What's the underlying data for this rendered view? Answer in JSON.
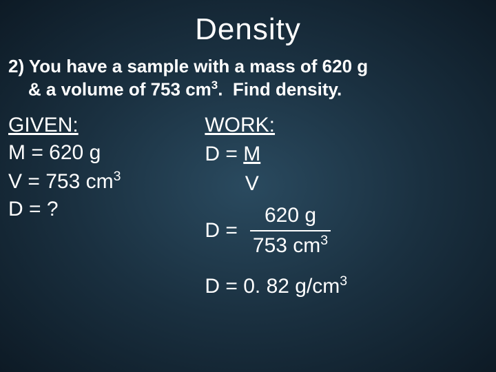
{
  "background": {
    "gradient_center": "#2a4a5f",
    "gradient_mid": "#1a3040",
    "gradient_edge": "#0d1a25"
  },
  "text_color": "#ffffff",
  "title": "Density",
  "title_fontsize": 44,
  "problem_fontsize": 26,
  "body_fontsize": 30,
  "problem_line1": "2) You have a sample with a mass of 620 g",
  "problem_line2_indent": "    & a volume of 753 cm",
  "problem_line2_sup": "3",
  "problem_line2_end": ".  Find density.",
  "given": {
    "heading": "GIVEN:",
    "m": "M = 620 g",
    "v_pre": "V = 753 cm",
    "v_sup": "3",
    "d": "D = ?"
  },
  "work": {
    "heading": "WORK:",
    "formula_lhs": "D = ",
    "formula_m": "M",
    "formula_v": "       V",
    "sub_lhs": "D =",
    "sub_top": "620 g",
    "sub_bot_pre": "753 cm",
    "sub_bot_sup": "3",
    "result_pre": "D = 0. 82 g/cm",
    "result_sup": "3"
  }
}
